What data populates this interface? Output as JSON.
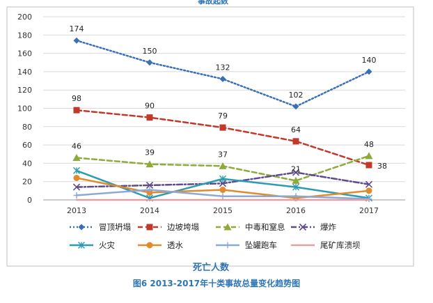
{
  "header_cut_text": "事故起数",
  "figure_caption": "图6  2013-2017年十类事故总量变化趋势图",
  "chart_data": {
    "type": "line",
    "title": "死亡人数",
    "x": [
      "2013",
      "2014",
      "2015",
      "2016",
      "2017"
    ],
    "ylim": [
      0,
      200
    ],
    "yticks": [
      0,
      20,
      40,
      60,
      80,
      100,
      120,
      140,
      160,
      180,
      200
    ],
    "grid": "horizontal",
    "legend_position": "bottom",
    "series": [
      {
        "name": "冒顶坍塌",
        "values": [
          174,
          150,
          132,
          102,
          140
        ],
        "color": "#3a6fb5",
        "style": "dotted",
        "marker": "diamond",
        "labels": true
      },
      {
        "name": "边坡垮塌",
        "values": [
          98,
          90,
          79,
          64,
          38
        ],
        "color": "#c0392b",
        "style": "dashed",
        "marker": "square",
        "labels": true
      },
      {
        "name": "中毒和窒息",
        "values": [
          46,
          39,
          37,
          21,
          48
        ],
        "color": "#8faa3a",
        "style": "dashed",
        "marker": "triangle",
        "labels": true
      },
      {
        "name": "爆炸",
        "values": [
          14,
          16,
          18,
          30,
          17
        ],
        "color": "#5e4a8c",
        "style": "dashdot",
        "marker": "x",
        "labels": false
      },
      {
        "name": "火灾",
        "values": [
          32,
          2,
          23,
          14,
          2
        ],
        "color": "#2a9bb0",
        "style": "solid",
        "marker": "asterisk",
        "labels": false
      },
      {
        "name": "透水",
        "values": [
          24,
          8,
          11,
          2,
          10
        ],
        "color": "#e08a2c",
        "style": "solid",
        "marker": "circle",
        "labels": false
      },
      {
        "name": "坠罐跑车",
        "values": [
          5,
          11,
          4,
          4,
          1
        ],
        "color": "#8ea8d6",
        "style": "solid",
        "marker": "plus",
        "labels": false
      },
      {
        "name": "尾矿库溃坝",
        "values": [
          0,
          0,
          0,
          0,
          0
        ],
        "color": "#e0a0a0",
        "style": "solid",
        "marker": "none",
        "labels": false
      }
    ]
  }
}
